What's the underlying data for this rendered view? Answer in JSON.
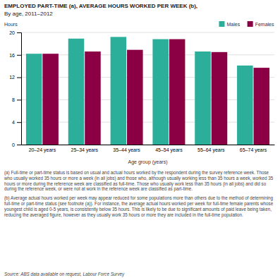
{
  "chart_data": {
    "type": "bar",
    "title": "EMPLOYED PART-TIME (a), AVERAGE HOURS WORKED PER WEEK (b),",
    "subtitle": "By age, 2011–2012",
    "y_label": "Hours",
    "x_label": "Age group (years)",
    "categories": [
      "20–24 years",
      "25–34 years",
      "35–44 years",
      "45–54 years",
      "55–64 years",
      "65–74 years"
    ],
    "series": [
      {
        "name": "Males",
        "color": "#2BAE9A",
        "values": [
          16.2,
          18.9,
          19.2,
          18.8,
          16.6,
          14.1
        ]
      },
      {
        "name": "Females",
        "color": "#8B0045",
        "values": [
          16.2,
          16.6,
          16.9,
          18.8,
          16.5,
          13.7
        ]
      }
    ],
    "ylim": [
      0,
      20
    ],
    "yticks": [
      0,
      4,
      8,
      12,
      16,
      20
    ],
    "grid": true,
    "legend": "upper right",
    "annotations": [
      "(a) Full-time or part-time status is based on usual and actual hours worked by the respondent during the survey reference week. Those who usually worked 35 hours or more a week (in all jobs) and those who, although usually working less than 35 hours a week, worked 35 hours or more during the reference week are classified as full-time. Those who usually work less than 35 hours (in all jobs) and did so during the reference week, or were not at work in the reference week are classified as part-time.",
      "(b) Average actual hours worked per week may appear reduced for some populations more than others due to the method of determining full-time or part-time status (see footnote (a)). For instance, the average actual hours worked per week for full-time female parents whose youngest child is aged 0-5 years, is consistently below 35 hours. This is likely to be due to significant amounts of paid leave being taken, reducing the averaged figure, however as they usually work 35 hours or more they are included in the full-time population.",
      "Source: ABS data available on request, Labour Force Survey"
    ]
  }
}
